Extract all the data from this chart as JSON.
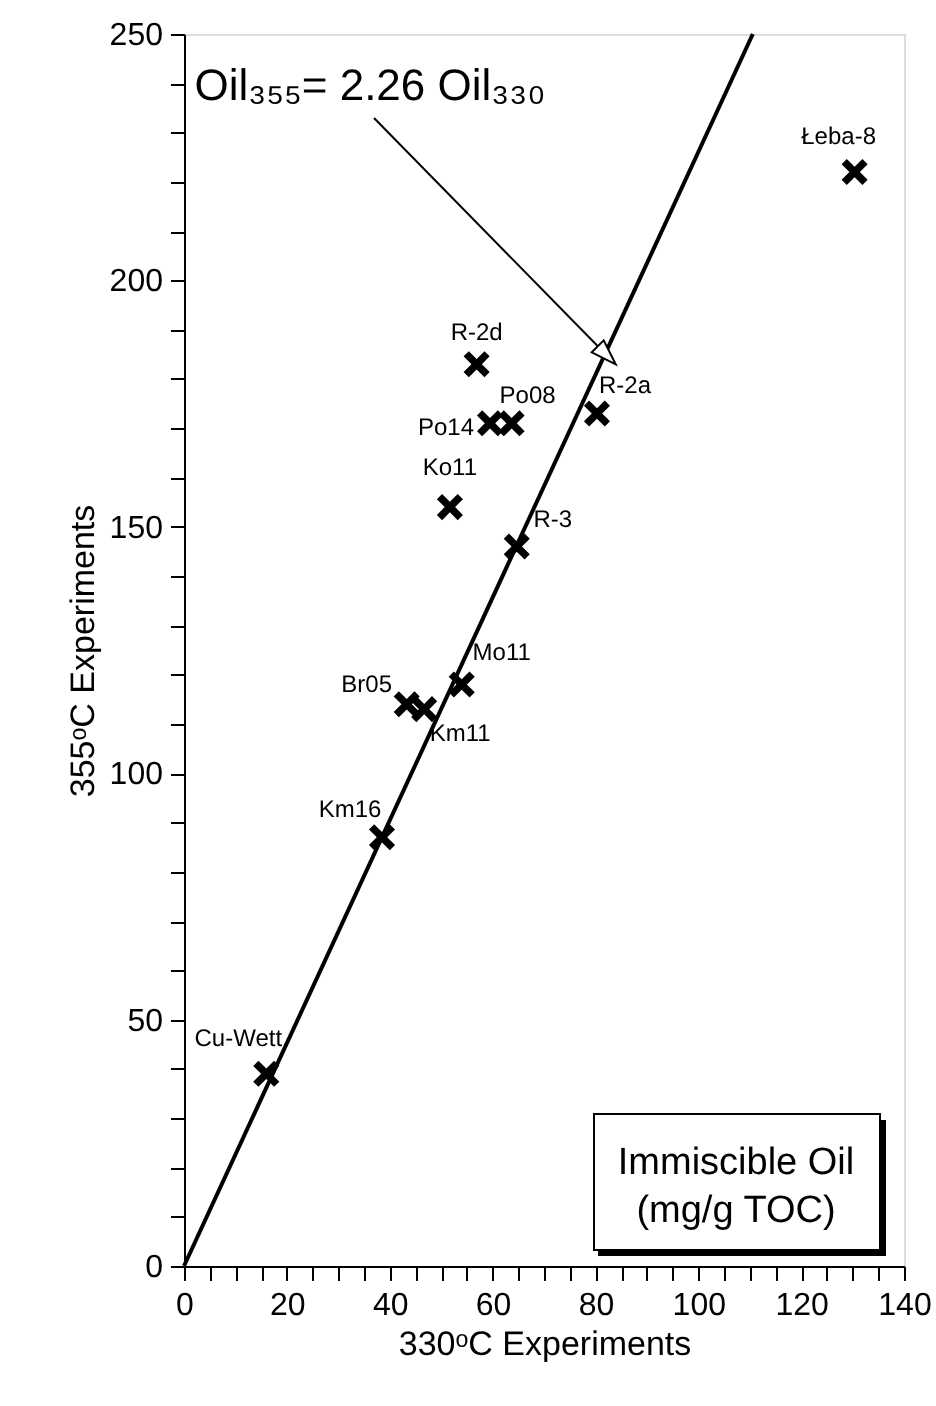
{
  "chart_data": {
    "type": "scatter",
    "xlabel": "330ᵒC Experiments",
    "ylabel": "355ᵒC Experiments",
    "x": [
      16,
      38.5,
      43.3,
      46.7,
      54,
      64.7,
      51.7,
      59.5,
      63.7,
      56.9,
      80.3,
      130.4
    ],
    "series": [
      {
        "color": "#000000",
        "marker": "cross",
        "values": [
          39,
          87,
          114,
          113,
          118,
          146,
          154,
          171,
          171,
          183,
          173,
          222
        ],
        "value_labels": [
          "Cu-Wett",
          "Km16",
          "Br05",
          "Km11",
          "Mo11",
          "R-3",
          "Ko11",
          "Po14",
          "Po08",
          "R-2d",
          "R-2a",
          "Łeba-8"
        ]
      },
      {
        "type": "line",
        "color": "#000000",
        "line_style": "solid",
        "x": [
          0,
          110.6
        ],
        "values": [
          0,
          250
        ]
      }
    ],
    "annotations": [
      {
        "text": "Oil₃₅₅= 2.26 Oil₃₃₀",
        "x": 82,
        "y": 185
      },
      "Immiscible Oil",
      "(mg/g TOC)"
    ],
    "xlim": [
      0,
      140
    ],
    "ylim": [
      0,
      250
    ],
    "xticks": [
      0,
      {
        "value": 5,
        "label": null
      },
      {
        "value": 10,
        "label": null
      },
      {
        "value": 15,
        "label": null
      },
      20,
      {
        "value": 25,
        "label": null
      },
      {
        "value": 30,
        "label": null
      },
      {
        "value": 35,
        "label": null
      },
      40,
      {
        "value": 45,
        "label": null
      },
      {
        "value": 50,
        "label": null
      },
      {
        "value": 55,
        "label": null
      },
      60,
      {
        "value": 65,
        "label": null
      },
      {
        "value": 70,
        "label": null
      },
      {
        "value": 75,
        "label": null
      },
      80,
      {
        "value": 85,
        "label": null
      },
      {
        "value": 90,
        "label": null
      },
      {
        "value": 95,
        "label": null
      },
      100,
      {
        "value": 105,
        "label": null
      },
      {
        "value": 110,
        "label": null
      },
      {
        "value": 115,
        "label": null
      },
      120,
      {
        "value": 125,
        "label": null
      },
      {
        "value": 130,
        "label": null
      },
      {
        "value": 135,
        "label": null
      },
      140
    ],
    "yticks": [
      0,
      {
        "value": 10,
        "label": null
      },
      {
        "value": 20,
        "label": null
      },
      {
        "value": 30,
        "label": null
      },
      {
        "value": 40,
        "label": null
      },
      50,
      {
        "value": 60,
        "label": null
      },
      {
        "value": 70,
        "label": null
      },
      {
        "value": 80,
        "label": null
      },
      {
        "value": 90,
        "label": null
      },
      100,
      {
        "value": 110,
        "label": null
      },
      {
        "value": 120,
        "label": null
      },
      {
        "value": 130,
        "label": null
      },
      {
        "value": 140,
        "label": null
      },
      150,
      {
        "value": 160,
        "label": null
      },
      {
        "value": 170,
        "label": null
      },
      {
        "value": 180,
        "label": null
      },
      {
        "value": 190,
        "label": null
      },
      200,
      {
        "value": 210,
        "label": null
      },
      {
        "value": 220,
        "label": null
      },
      {
        "value": 230,
        "label": null
      },
      {
        "value": 240,
        "label": null
      },
      250
    ],
    "grid": false
  }
}
